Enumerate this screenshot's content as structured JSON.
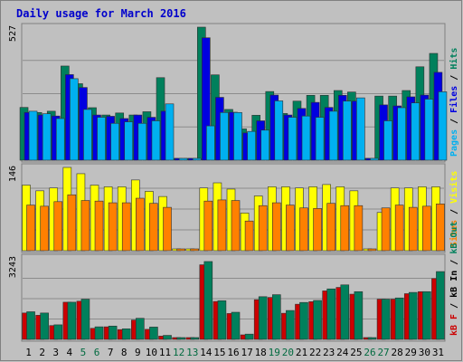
{
  "colors": {
    "background": "#ffffff",
    "frame": "#c0c0c0",
    "plot_bg": "#c0c0c0",
    "border_dark": "#808080",
    "gridline": "#8c8c8c",
    "title": "#0000cc",
    "tick_weekday": "#000000",
    "tick_weekend": "#006a3f",
    "hits": "#00805c",
    "files": "#0000e0",
    "pages": "#00b0f0",
    "visits": "#ffff00",
    "sites": "#ff8000",
    "kb_f": "#cc0000",
    "kb_in": "#0000e0",
    "kb_out": "#00805c"
  },
  "chart_data": {
    "type": "bar",
    "title": "Daily usage for March 2016",
    "categories": [
      "1",
      "2",
      "3",
      "4",
      "5",
      "6",
      "7",
      "8",
      "9",
      "10",
      "11",
      "12",
      "13",
      "14",
      "15",
      "16",
      "17",
      "18",
      "19",
      "20",
      "21",
      "22",
      "23",
      "24",
      "25",
      "26",
      "27",
      "28",
      "29",
      "30",
      "31"
    ],
    "weekend_days": [
      "5",
      "6",
      "12",
      "13",
      "19",
      "20",
      "26",
      "27"
    ],
    "panels": [
      {
        "name": "hits-files-pages",
        "ymax": 527,
        "ymax_label": "527",
        "legend": [
          "Pages",
          "Files",
          "Hits"
        ],
        "series": [
          {
            "name": "Hits",
            "color": "#00805c",
            "values": [
              209,
              189,
              194,
              373,
              303,
              208,
              179,
              187,
              179,
              192,
              327,
              0,
              0,
              527,
              338,
              201,
              124,
              178,
              272,
              185,
              234,
              257,
              257,
              276,
              270,
              0,
              254,
              254,
              276,
              370,
              423
            ]
          },
          {
            "name": "Files",
            "color": "#0000e0",
            "values": [
              189,
              179,
              175,
              339,
              288,
              179,
              174,
              165,
              179,
              170,
              194,
              0,
              0,
              485,
              249,
              190,
              108,
              156,
              258,
              179,
              205,
              229,
              209,
              257,
              234,
              0,
              219,
              215,
              251,
              258,
              348
            ]
          },
          {
            "name": "Pages",
            "color": "#00b0f0",
            "values": [
              194,
              184,
              165,
              323,
              201,
              170,
              146,
              152,
              146,
              156,
              223,
              0,
              0,
              136,
              189,
              189,
              114,
              119,
              235,
              170,
              175,
              170,
              194,
              234,
              247,
              0,
              156,
              208,
              227,
              242,
              271
            ]
          }
        ]
      },
      {
        "name": "visits-sites",
        "ymax": 146,
        "ymax_label": "146",
        "legend": [
          "Sites",
          "Visits"
        ],
        "series": [
          {
            "name": "Visits",
            "color": "#ffff00",
            "values": [
              115,
              105,
              110,
              146,
              135,
              115,
              112,
              112,
              124,
              104,
              95,
              0,
              0,
              110,
              119,
              108,
              66,
              96,
              112,
              112,
              110,
              112,
              116,
              112,
              105,
              0,
              67,
              110,
              110,
              112,
              112
            ]
          },
          {
            "name": "Sites",
            "color": "#ff8000",
            "values": [
              80,
              78,
              86,
              98,
              88,
              87,
              84,
              84,
              92,
              83,
              76,
              0,
              0,
              87,
              89,
              88,
              52,
              79,
              84,
              80,
              75,
              74,
              83,
              79,
              79,
              0,
              75,
              80,
              76,
              78,
              82
            ]
          }
        ]
      },
      {
        "name": "kbytes",
        "ymax": 3243,
        "ymax_label": "3243",
        "legend": [
          "kB F",
          "kB In",
          "kB Out"
        ],
        "series": [
          {
            "name": "kB F",
            "color": "#cc0000",
            "values": [
              1050,
              960,
              550,
              1480,
              1520,
              440,
              500,
              390,
              770,
              400,
              130,
              0,
              0,
              2970,
              1510,
              1030,
              180,
              1580,
              1670,
              1040,
              1400,
              1500,
              1930,
              2070,
              1800,
              0,
              1600,
              1600,
              1820,
              1900,
              2420
            ]
          },
          {
            "name": "kB Out",
            "color": "#00805c",
            "values": [
              1100,
              1050,
              580,
              1480,
              1600,
              500,
              530,
              420,
              840,
              490,
              160,
              0,
              0,
              3100,
              1540,
              1080,
              210,
              1700,
              1780,
              1150,
              1470,
              1550,
              2010,
              2170,
              1900,
              0,
              1600,
              1650,
              1870,
              1900,
              2700
            ]
          }
        ]
      }
    ]
  }
}
